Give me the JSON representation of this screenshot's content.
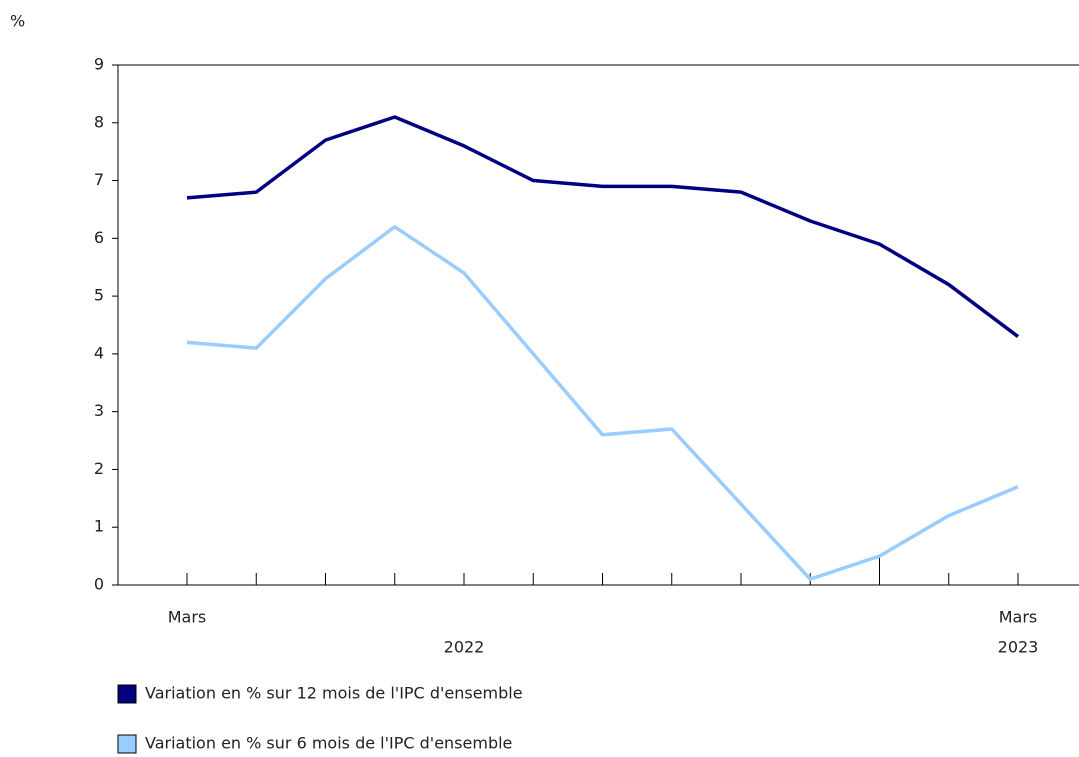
{
  "chart_data": {
    "type": "line",
    "y_axis_label": "%",
    "categories": [
      "Mars",
      null,
      null,
      null,
      null,
      null,
      null,
      null,
      null,
      null,
      null,
      null,
      "Mars"
    ],
    "year_labels": [
      "2022",
      "2023"
    ],
    "series": [
      {
        "name": "Variation en % sur 12 mois de l'IPC d'ensemble",
        "color": "#000080",
        "values": [
          6.7,
          6.8,
          7.7,
          8.1,
          7.6,
          7.0,
          6.9,
          6.9,
          6.8,
          6.3,
          5.9,
          5.2,
          4.3
        ]
      },
      {
        "name": "Variation en % sur 6 mois de l'IPC d'ensemble",
        "color": "#99ccff",
        "values": [
          4.2,
          4.1,
          5.3,
          6.2,
          5.4,
          4.0,
          2.6,
          2.7,
          1.4,
          0.1,
          0.5,
          1.2,
          1.7
        ]
      }
    ],
    "ylim": [
      0,
      9
    ],
    "yticks": [
      0,
      1,
      2,
      3,
      4,
      5,
      6,
      7,
      8,
      9
    ]
  }
}
